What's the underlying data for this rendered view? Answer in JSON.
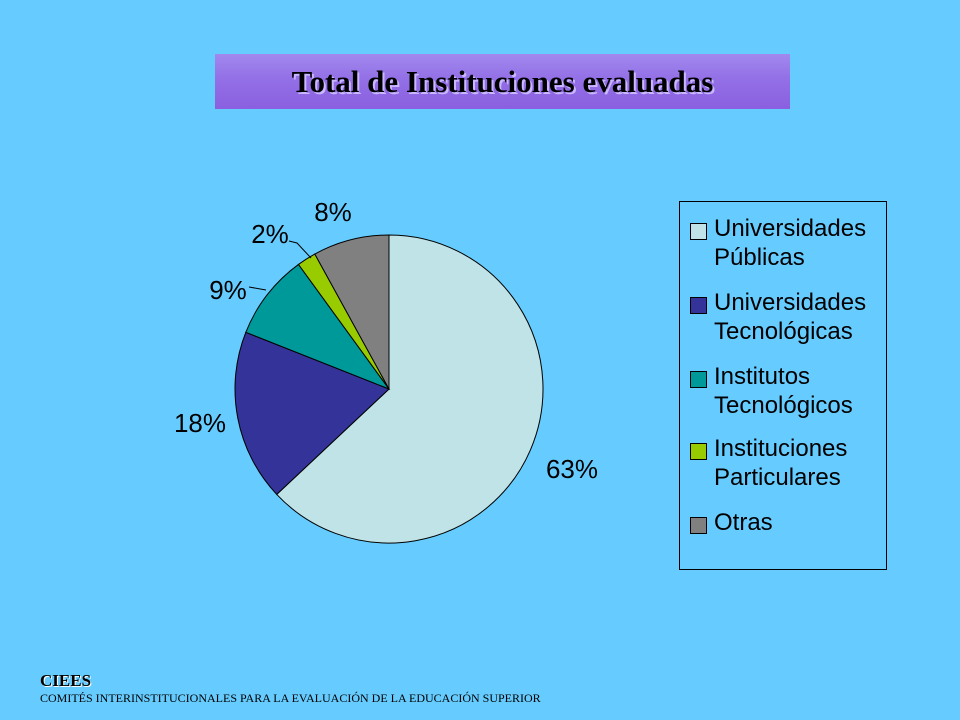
{
  "slide": {
    "title": "Total de Instituciones evaluadas",
    "footer_org": "CIEES",
    "footer_full": "COMITÉS INTERINSTITUCIONALES PARA LA EVALUACIÓN DE LA EDUCACIÓN SUPERIOR"
  },
  "colors": {
    "background": "#66ccff",
    "title_banner": "#9370e6"
  },
  "chart_data": {
    "type": "pie",
    "title": "Total de Instituciones evaluadas",
    "legend_position": "right",
    "slices": [
      {
        "label": "Universidades Públicas",
        "legend": "Universidades\nPúblicas",
        "value": 63,
        "display": "63%",
        "color": "#bfe3e6"
      },
      {
        "label": "Universidades Tecnológicas",
        "legend": "Universidades\nTecnológicas",
        "value": 18,
        "display": "18%",
        "color": "#333399"
      },
      {
        "label": "Institutos Tecnológicos",
        "legend": "Institutos\nTecnológicos",
        "value": 9,
        "display": "9%",
        "color": "#009999"
      },
      {
        "label": "Instituciones Particulares",
        "legend": "Instituciones\nParticulares",
        "value": 2,
        "display": "2%",
        "color": "#99cc00"
      },
      {
        "label": "Otras",
        "legend": "Otras",
        "value": 8,
        "display": "8%",
        "color": "#808080"
      }
    ]
  }
}
